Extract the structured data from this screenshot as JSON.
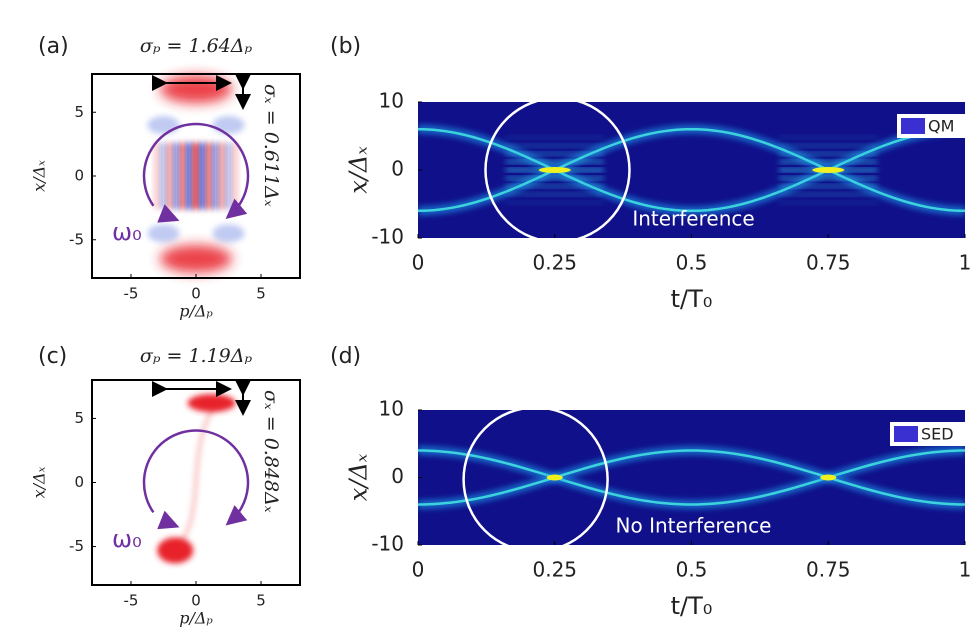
{
  "chart_data": [
    {
      "type": "density",
      "label": "(a)",
      "title": "σₚ = 1.64Δₚ",
      "annotation": "σₓ = 0.611Δₓ",
      "symbol": "ω₀",
      "xlabel": "p/Δₚ",
      "ylabel": "x/Δₓ",
      "xlim": [
        -8,
        8
      ],
      "ylim": [
        -8,
        8
      ],
      "xticks": [
        -5,
        0,
        5
      ],
      "yticks": [
        -5,
        0,
        5
      ]
    },
    {
      "type": "heatmap",
      "label": "(b)",
      "xlabel": "t/T₀",
      "ylabel": "x/Δₓ",
      "xlim": [
        0,
        1
      ],
      "ylim": [
        -10,
        10
      ],
      "xticks": [
        0,
        0.25,
        0.5,
        0.75,
        1
      ],
      "yticks": [
        -10,
        0,
        10
      ],
      "series": [
        {
          "name": "QM",
          "color": "#3a2fd0"
        }
      ],
      "legend": "upper right",
      "annotation": "Interference"
    },
    {
      "type": "density",
      "label": "(c)",
      "title": "σₚ = 1.19Δₚ",
      "annotation": "σₓ = 0.848Δₓ",
      "symbol": "ω₀",
      "xlabel": "p/Δₚ",
      "ylabel": "x/Δₓ",
      "xlim": [
        -8,
        8
      ],
      "ylim": [
        -8,
        8
      ],
      "xticks": [
        -5,
        0,
        5
      ],
      "yticks": [
        -5,
        0,
        5
      ]
    },
    {
      "type": "heatmap",
      "label": "(d)",
      "xlabel": "t/T₀",
      "ylabel": "x/Δₓ",
      "xlim": [
        0,
        1
      ],
      "ylim": [
        -10,
        10
      ],
      "xticks": [
        0,
        0.25,
        0.5,
        0.75,
        1
      ],
      "yticks": [
        -10,
        0,
        10
      ],
      "series": [
        {
          "name": "SED",
          "color": "#3a2fd0"
        }
      ],
      "legend": "upper right",
      "annotation": "No Interference"
    }
  ]
}
